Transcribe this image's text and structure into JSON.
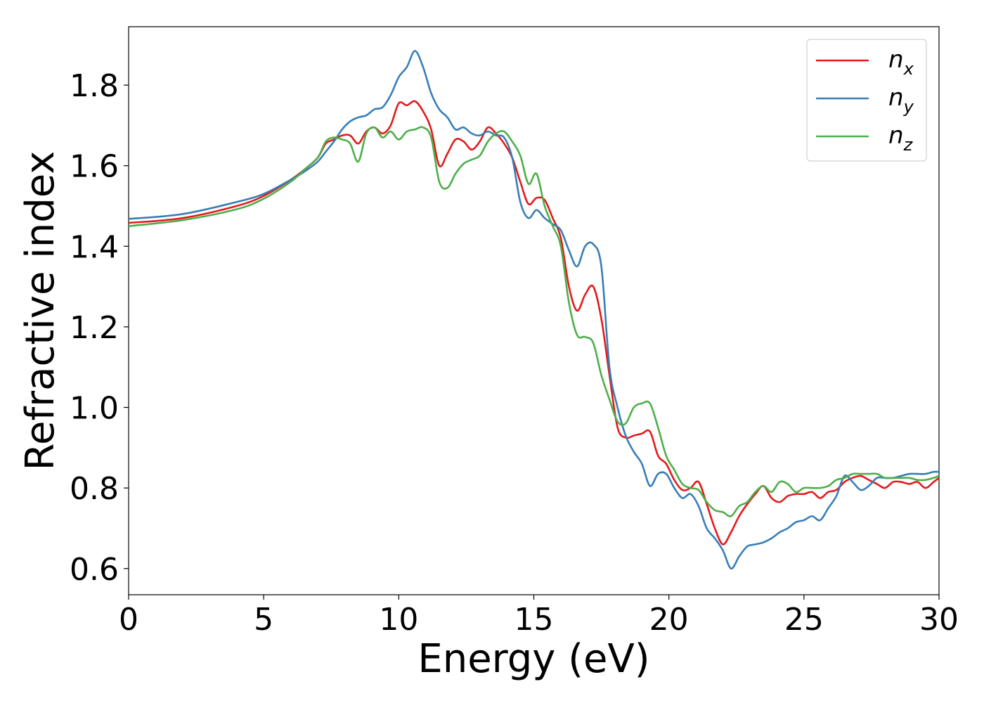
{
  "chart_data": {
    "type": "line",
    "xlabel": "Energy (eV)",
    "ylabel": "Refractive index",
    "xlim": [
      0,
      30
    ],
    "ylim": [
      0.535,
      1.945
    ],
    "xticks": [
      0,
      5,
      10,
      15,
      20,
      25,
      30
    ],
    "yticks": [
      0.6,
      0.8,
      1.0,
      1.2,
      1.4,
      1.6,
      1.8
    ],
    "x_tick_labels": [
      "0",
      "5",
      "10",
      "15",
      "20",
      "25",
      "30"
    ],
    "y_tick_labels": [
      "0.6",
      "0.8",
      "1.0",
      "1.2",
      "1.4",
      "1.6",
      "1.8"
    ],
    "grid": false,
    "legend_position": "top-right",
    "series": [
      {
        "name": "n",
        "subscript": "x",
        "color": "#e41a1c",
        "x": [
          0,
          2,
          4,
          5,
          6,
          6.5,
          7,
          7.3,
          7.6,
          7.9,
          8.2,
          8.5,
          8.8,
          9.1,
          9.4,
          9.7,
          10.0,
          10.3,
          10.6,
          10.9,
          11.2,
          11.5,
          11.8,
          12.1,
          12.4,
          12.7,
          13.0,
          13.3,
          13.6,
          13.9,
          14.2,
          14.5,
          14.8,
          15.1,
          15.4,
          15.7,
          16.0,
          16.3,
          16.6,
          16.9,
          17.2,
          17.5,
          17.8,
          18.1,
          18.4,
          18.7,
          19.0,
          19.3,
          19.6,
          19.9,
          20.2,
          20.5,
          20.8,
          21.1,
          21.4,
          21.7,
          22.0,
          22.3,
          22.6,
          22.9,
          23.2,
          23.5,
          23.8,
          24.1,
          24.4,
          24.7,
          25.0,
          25.3,
          25.6,
          25.9,
          26.2,
          26.5,
          26.8,
          27.1,
          27.4,
          27.7,
          28.0,
          28.3,
          28.6,
          28.9,
          29.2,
          29.5,
          29.8,
          30.0
        ],
        "y": [
          1.458,
          1.47,
          1.5,
          1.525,
          1.565,
          1.59,
          1.62,
          1.655,
          1.665,
          1.675,
          1.675,
          1.655,
          1.685,
          1.695,
          1.68,
          1.7,
          1.755,
          1.75,
          1.76,
          1.735,
          1.69,
          1.6,
          1.63,
          1.665,
          1.66,
          1.64,
          1.66,
          1.695,
          1.68,
          1.655,
          1.62,
          1.56,
          1.505,
          1.52,
          1.515,
          1.47,
          1.42,
          1.3,
          1.24,
          1.28,
          1.3,
          1.22,
          1.08,
          0.95,
          0.925,
          0.93,
          0.935,
          0.94,
          0.88,
          0.86,
          0.82,
          0.795,
          0.8,
          0.815,
          0.76,
          0.7,
          0.66,
          0.69,
          0.73,
          0.76,
          0.785,
          0.805,
          0.775,
          0.765,
          0.78,
          0.785,
          0.785,
          0.79,
          0.775,
          0.79,
          0.795,
          0.815,
          0.825,
          0.83,
          0.82,
          0.81,
          0.8,
          0.815,
          0.815,
          0.81,
          0.815,
          0.8,
          0.815,
          0.825
        ]
      },
      {
        "name": "n",
        "subscript": "y",
        "color": "#377eb8",
        "x": [
          0,
          2,
          4,
          5,
          6,
          6.5,
          7,
          7.3,
          7.6,
          7.9,
          8.2,
          8.5,
          8.8,
          9.1,
          9.4,
          9.7,
          10.0,
          10.3,
          10.6,
          10.9,
          11.2,
          11.5,
          11.8,
          12.1,
          12.4,
          12.7,
          13.0,
          13.3,
          13.6,
          13.9,
          14.2,
          14.5,
          14.8,
          15.1,
          15.4,
          15.7,
          16.0,
          16.3,
          16.6,
          16.9,
          17.2,
          17.5,
          17.8,
          18.1,
          18.4,
          18.7,
          19.0,
          19.3,
          19.6,
          19.9,
          20.2,
          20.5,
          20.8,
          21.1,
          21.4,
          21.7,
          22.0,
          22.3,
          22.6,
          22.9,
          23.2,
          23.5,
          23.8,
          24.1,
          24.4,
          24.7,
          25.0,
          25.3,
          25.6,
          25.9,
          26.2,
          26.5,
          26.8,
          27.1,
          27.4,
          27.7,
          28.0,
          28.3,
          28.6,
          28.9,
          29.2,
          29.5,
          29.8,
          30.0
        ],
        "y": [
          1.468,
          1.48,
          1.51,
          1.53,
          1.565,
          1.585,
          1.61,
          1.635,
          1.66,
          1.69,
          1.71,
          1.72,
          1.725,
          1.74,
          1.745,
          1.775,
          1.82,
          1.845,
          1.885,
          1.845,
          1.78,
          1.74,
          1.72,
          1.69,
          1.695,
          1.68,
          1.675,
          1.685,
          1.675,
          1.67,
          1.62,
          1.51,
          1.47,
          1.49,
          1.47,
          1.455,
          1.44,
          1.39,
          1.35,
          1.4,
          1.405,
          1.35,
          1.1,
          1.0,
          0.93,
          0.89,
          0.86,
          0.805,
          0.835,
          0.835,
          0.8,
          0.775,
          0.785,
          0.755,
          0.7,
          0.675,
          0.645,
          0.6,
          0.63,
          0.655,
          0.66,
          0.665,
          0.675,
          0.69,
          0.7,
          0.715,
          0.72,
          0.73,
          0.72,
          0.75,
          0.78,
          0.83,
          0.815,
          0.795,
          0.805,
          0.825,
          0.825,
          0.825,
          0.83,
          0.835,
          0.835,
          0.835,
          0.84,
          0.84
        ]
      },
      {
        "name": "n",
        "subscript": "z",
        "color": "#4daf4a",
        "x": [
          0,
          2,
          4,
          5,
          6,
          6.5,
          7,
          7.3,
          7.6,
          7.9,
          8.2,
          8.5,
          8.8,
          9.1,
          9.4,
          9.7,
          10.0,
          10.3,
          10.6,
          10.9,
          11.2,
          11.5,
          11.8,
          12.1,
          12.4,
          12.7,
          13.0,
          13.3,
          13.6,
          13.9,
          14.2,
          14.5,
          14.8,
          15.1,
          15.4,
          15.7,
          16.0,
          16.3,
          16.6,
          16.9,
          17.2,
          17.5,
          17.8,
          18.1,
          18.4,
          18.7,
          19.0,
          19.3,
          19.6,
          19.9,
          20.2,
          20.5,
          20.8,
          21.1,
          21.4,
          21.7,
          22.0,
          22.3,
          22.6,
          22.9,
          23.2,
          23.5,
          23.8,
          24.1,
          24.4,
          24.7,
          25.0,
          25.3,
          25.6,
          25.9,
          26.2,
          26.5,
          26.8,
          27.1,
          27.4,
          27.7,
          28.0,
          28.3,
          28.6,
          28.9,
          29.2,
          29.5,
          29.8,
          30.0
        ],
        "y": [
          1.45,
          1.465,
          1.492,
          1.518,
          1.56,
          1.59,
          1.62,
          1.66,
          1.67,
          1.665,
          1.655,
          1.61,
          1.68,
          1.695,
          1.67,
          1.685,
          1.665,
          1.685,
          1.69,
          1.695,
          1.67,
          1.56,
          1.545,
          1.58,
          1.605,
          1.615,
          1.625,
          1.66,
          1.68,
          1.685,
          1.66,
          1.625,
          1.555,
          1.58,
          1.5,
          1.45,
          1.4,
          1.26,
          1.18,
          1.175,
          1.16,
          1.08,
          1.02,
          0.965,
          0.96,
          1.0,
          1.01,
          1.01,
          0.95,
          0.88,
          0.845,
          0.81,
          0.8,
          0.795,
          0.765,
          0.745,
          0.74,
          0.73,
          0.755,
          0.765,
          0.79,
          0.805,
          0.79,
          0.815,
          0.81,
          0.79,
          0.8,
          0.8,
          0.8,
          0.805,
          0.82,
          0.825,
          0.835,
          0.835,
          0.835,
          0.835,
          0.825,
          0.825,
          0.825,
          0.825,
          0.82,
          0.82,
          0.825,
          0.83
        ]
      }
    ]
  }
}
